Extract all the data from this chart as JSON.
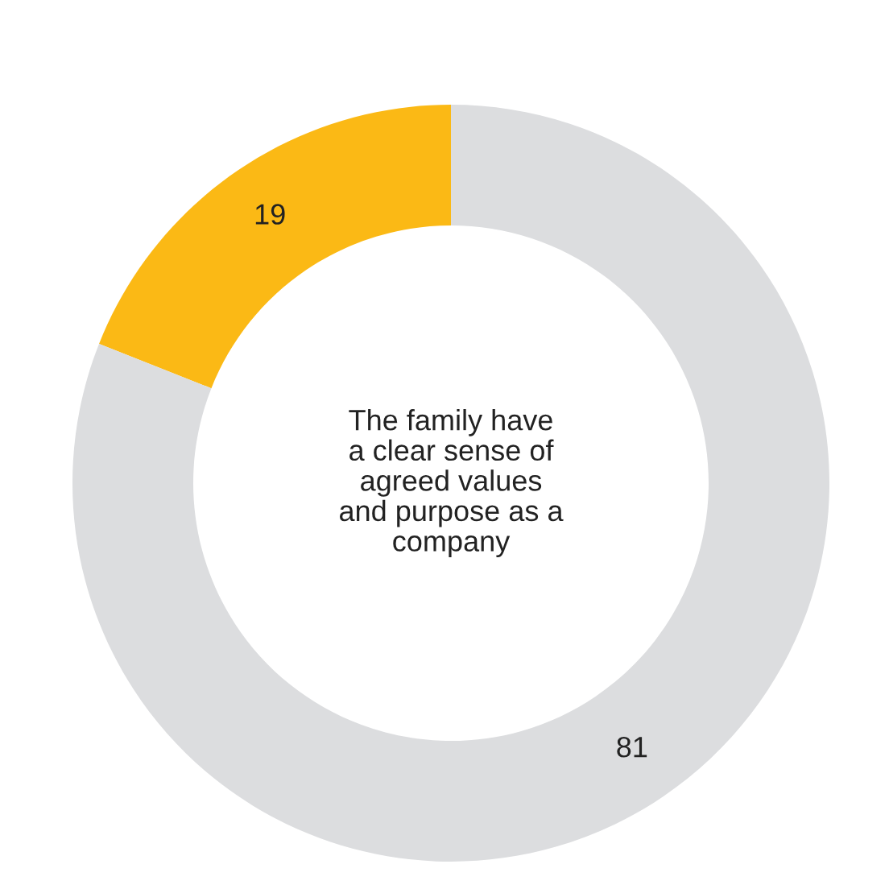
{
  "chart_data": {
    "type": "donut",
    "title": "The family have\na clear sense of\nagreed values\nand purpose as a\ncompany",
    "categories": [
      null,
      null
    ],
    "values": [
      19,
      81
    ],
    "colors": [
      "#fbb915",
      "#dcdddf"
    ],
    "data_labels": true
  }
}
